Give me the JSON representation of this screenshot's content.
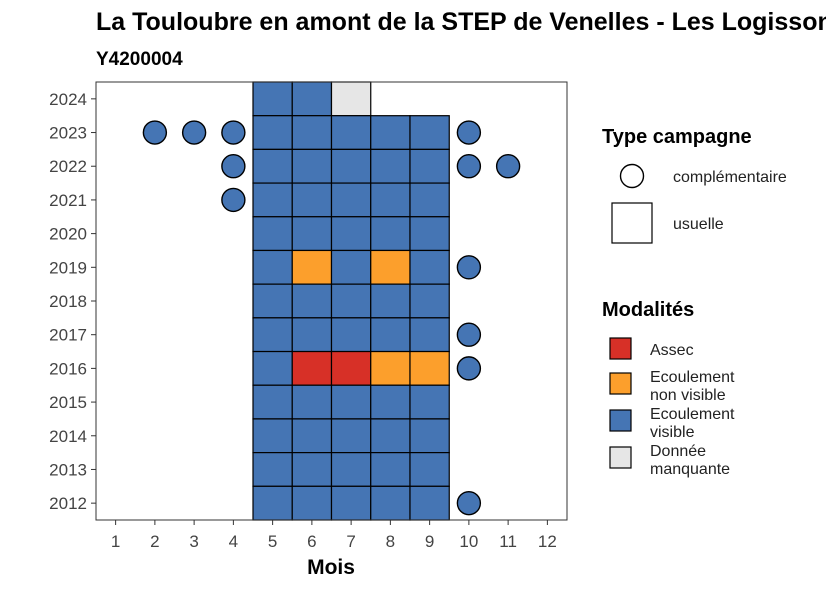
{
  "chart_data": {
    "type": "heatmap",
    "title": "La Touloubre en amont de la STEP de Venelles - Les Logissons",
    "subtitle": "Y4200004",
    "xlabel": "Mois",
    "ylabel": "",
    "x_ticks": [
      1,
      2,
      3,
      4,
      5,
      6,
      7,
      8,
      9,
      10,
      11,
      12
    ],
    "y_ticks": [
      2012,
      2013,
      2014,
      2015,
      2016,
      2017,
      2018,
      2019,
      2020,
      2021,
      2022,
      2023,
      2024
    ],
    "xlim": [
      0.5,
      12.5
    ],
    "ylim": [
      2011.5,
      2024.5
    ],
    "colors": {
      "Assec": "#d73027",
      "Ecoulement non visible": "#fc9f2c",
      "Ecoulement visible": "#4575b4",
      "Donnée manquante": "#e6e6e6"
    },
    "usuelle": [
      {
        "year": 2024,
        "month": 5,
        "modalite": "Ecoulement visible"
      },
      {
        "year": 2024,
        "month": 6,
        "modalite": "Ecoulement visible"
      },
      {
        "year": 2024,
        "month": 7,
        "modalite": "Donnée manquante"
      },
      {
        "year": 2023,
        "month": 5,
        "modalite": "Ecoulement visible"
      },
      {
        "year": 2023,
        "month": 6,
        "modalite": "Ecoulement visible"
      },
      {
        "year": 2023,
        "month": 7,
        "modalite": "Ecoulement visible"
      },
      {
        "year": 2023,
        "month": 8,
        "modalite": "Ecoulement visible"
      },
      {
        "year": 2023,
        "month": 9,
        "modalite": "Ecoulement visible"
      },
      {
        "year": 2022,
        "month": 5,
        "modalite": "Ecoulement visible"
      },
      {
        "year": 2022,
        "month": 6,
        "modalite": "Ecoulement visible"
      },
      {
        "year": 2022,
        "month": 7,
        "modalite": "Ecoulement visible"
      },
      {
        "year": 2022,
        "month": 8,
        "modalite": "Ecoulement visible"
      },
      {
        "year": 2022,
        "month": 9,
        "modalite": "Ecoulement visible"
      },
      {
        "year": 2021,
        "month": 5,
        "modalite": "Ecoulement visible"
      },
      {
        "year": 2021,
        "month": 6,
        "modalite": "Ecoulement visible"
      },
      {
        "year": 2021,
        "month": 7,
        "modalite": "Ecoulement visible"
      },
      {
        "year": 2021,
        "month": 8,
        "modalite": "Ecoulement visible"
      },
      {
        "year": 2021,
        "month": 9,
        "modalite": "Ecoulement visible"
      },
      {
        "year": 2020,
        "month": 5,
        "modalite": "Ecoulement visible"
      },
      {
        "year": 2020,
        "month": 6,
        "modalite": "Ecoulement visible"
      },
      {
        "year": 2020,
        "month": 7,
        "modalite": "Ecoulement visible"
      },
      {
        "year": 2020,
        "month": 8,
        "modalite": "Ecoulement visible"
      },
      {
        "year": 2020,
        "month": 9,
        "modalite": "Ecoulement visible"
      },
      {
        "year": 2019,
        "month": 5,
        "modalite": "Ecoulement visible"
      },
      {
        "year": 2019,
        "month": 6,
        "modalite": "Ecoulement non visible"
      },
      {
        "year": 2019,
        "month": 7,
        "modalite": "Ecoulement visible"
      },
      {
        "year": 2019,
        "month": 8,
        "modalite": "Ecoulement non visible"
      },
      {
        "year": 2019,
        "month": 9,
        "modalite": "Ecoulement visible"
      },
      {
        "year": 2018,
        "month": 5,
        "modalite": "Ecoulement visible"
      },
      {
        "year": 2018,
        "month": 6,
        "modalite": "Ecoulement visible"
      },
      {
        "year": 2018,
        "month": 7,
        "modalite": "Ecoulement visible"
      },
      {
        "year": 2018,
        "month": 8,
        "modalite": "Ecoulement visible"
      },
      {
        "year": 2018,
        "month": 9,
        "modalite": "Ecoulement visible"
      },
      {
        "year": 2017,
        "month": 5,
        "modalite": "Ecoulement visible"
      },
      {
        "year": 2017,
        "month": 6,
        "modalite": "Ecoulement visible"
      },
      {
        "year": 2017,
        "month": 7,
        "modalite": "Ecoulement visible"
      },
      {
        "year": 2017,
        "month": 8,
        "modalite": "Ecoulement visible"
      },
      {
        "year": 2017,
        "month": 9,
        "modalite": "Ecoulement visible"
      },
      {
        "year": 2016,
        "month": 5,
        "modalite": "Ecoulement visible"
      },
      {
        "year": 2016,
        "month": 6,
        "modalite": "Assec"
      },
      {
        "year": 2016,
        "month": 7,
        "modalite": "Assec"
      },
      {
        "year": 2016,
        "month": 8,
        "modalite": "Ecoulement non visible"
      },
      {
        "year": 2016,
        "month": 9,
        "modalite": "Ecoulement non visible"
      },
      {
        "year": 2015,
        "month": 5,
        "modalite": "Ecoulement visible"
      },
      {
        "year": 2015,
        "month": 6,
        "modalite": "Ecoulement visible"
      },
      {
        "year": 2015,
        "month": 7,
        "modalite": "Ecoulement visible"
      },
      {
        "year": 2015,
        "month": 8,
        "modalite": "Ecoulement visible"
      },
      {
        "year": 2015,
        "month": 9,
        "modalite": "Ecoulement visible"
      },
      {
        "year": 2014,
        "month": 5,
        "modalite": "Ecoulement visible"
      },
      {
        "year": 2014,
        "month": 6,
        "modalite": "Ecoulement visible"
      },
      {
        "year": 2014,
        "month": 7,
        "modalite": "Ecoulement visible"
      },
      {
        "year": 2014,
        "month": 8,
        "modalite": "Ecoulement visible"
      },
      {
        "year": 2014,
        "month": 9,
        "modalite": "Ecoulement visible"
      },
      {
        "year": 2013,
        "month": 5,
        "modalite": "Ecoulement visible"
      },
      {
        "year": 2013,
        "month": 6,
        "modalite": "Ecoulement visible"
      },
      {
        "year": 2013,
        "month": 7,
        "modalite": "Ecoulement visible"
      },
      {
        "year": 2013,
        "month": 8,
        "modalite": "Ecoulement visible"
      },
      {
        "year": 2013,
        "month": 9,
        "modalite": "Ecoulement visible"
      },
      {
        "year": 2012,
        "month": 5,
        "modalite": "Ecoulement visible"
      },
      {
        "year": 2012,
        "month": 6,
        "modalite": "Ecoulement visible"
      },
      {
        "year": 2012,
        "month": 7,
        "modalite": "Ecoulement visible"
      },
      {
        "year": 2012,
        "month": 8,
        "modalite": "Ecoulement visible"
      },
      {
        "year": 2012,
        "month": 9,
        "modalite": "Ecoulement visible"
      }
    ],
    "complementaire": [
      {
        "year": 2023,
        "month": 2,
        "modalite": "Ecoulement visible"
      },
      {
        "year": 2023,
        "month": 3,
        "modalite": "Ecoulement visible"
      },
      {
        "year": 2023,
        "month": 4,
        "modalite": "Ecoulement visible"
      },
      {
        "year": 2023,
        "month": 10,
        "modalite": "Ecoulement visible"
      },
      {
        "year": 2022,
        "month": 4,
        "modalite": "Ecoulement visible"
      },
      {
        "year": 2022,
        "month": 10,
        "modalite": "Ecoulement visible"
      },
      {
        "year": 2022,
        "month": 11,
        "modalite": "Ecoulement visible"
      },
      {
        "year": 2021,
        "month": 4,
        "modalite": "Ecoulement visible"
      },
      {
        "year": 2019,
        "month": 10,
        "modalite": "Ecoulement visible"
      },
      {
        "year": 2017,
        "month": 10,
        "modalite": "Ecoulement visible"
      },
      {
        "year": 2016,
        "month": 10,
        "modalite": "Ecoulement visible"
      },
      {
        "year": 2012,
        "month": 10,
        "modalite": "Ecoulement visible"
      }
    ],
    "legend": {
      "type_title": "Type campagne",
      "type_items": [
        "complémentaire",
        "usuelle"
      ],
      "modalite_title": "Modalités",
      "modalite_items": [
        {
          "key": "Assec",
          "lines": [
            "Assec"
          ]
        },
        {
          "key": "Ecoulement non visible",
          "lines": [
            "Ecoulement",
            "non visible"
          ]
        },
        {
          "key": "Ecoulement visible",
          "lines": [
            "Ecoulement",
            "visible"
          ]
        },
        {
          "key": "Donnée manquante",
          "lines": [
            "Donnée",
            "manquante"
          ]
        }
      ]
    }
  }
}
